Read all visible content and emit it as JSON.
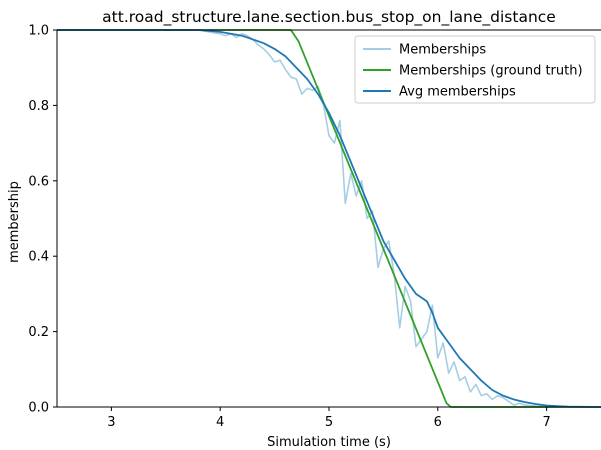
{
  "chart_data": {
    "type": "line",
    "title": "att.road_structure.lane.section.bus_stop_on_lane_distance",
    "xlabel": "Simulation time (s)",
    "ylabel": "membership",
    "xlim": [
      2.5,
      7.5
    ],
    "ylim": [
      0.0,
      1.0
    ],
    "xticks": [
      3,
      4,
      5,
      6,
      7
    ],
    "yticks": [
      0.0,
      0.2,
      0.4,
      0.6,
      0.8,
      1.0
    ],
    "xtick_labels": [
      "3",
      "4",
      "5",
      "6",
      "7"
    ],
    "ytick_labels": [
      "0.0",
      "0.2",
      "0.4",
      "0.6",
      "0.8",
      "1.0"
    ],
    "grid": false,
    "legend_position": "top-right",
    "series": [
      {
        "name": "Memberships",
        "color": "#a6cee3",
        "x": [
          2.5,
          3.8,
          3.9,
          4.0,
          4.05,
          4.1,
          4.15,
          4.2,
          4.25,
          4.3,
          4.35,
          4.4,
          4.45,
          4.5,
          4.55,
          4.6,
          4.65,
          4.7,
          4.75,
          4.8,
          4.85,
          4.9,
          4.95,
          5.0,
          5.05,
          5.1,
          5.15,
          5.2,
          5.25,
          5.3,
          5.35,
          5.4,
          5.45,
          5.5,
          5.55,
          5.6,
          5.65,
          5.7,
          5.75,
          5.8,
          5.85,
          5.9,
          5.95,
          6.0,
          6.05,
          6.1,
          6.15,
          6.2,
          6.25,
          6.3,
          6.35,
          6.4,
          6.45,
          6.5,
          6.55,
          6.6,
          6.65,
          6.7,
          6.75,
          6.8,
          6.9,
          7.0,
          7.1,
          7.2,
          7.5
        ],
        "y": [
          1.0,
          1.0,
          0.995,
          0.99,
          0.985,
          0.99,
          0.98,
          0.99,
          0.985,
          0.975,
          0.96,
          0.95,
          0.935,
          0.915,
          0.92,
          0.895,
          0.875,
          0.87,
          0.83,
          0.845,
          0.84,
          0.85,
          0.8,
          0.72,
          0.7,
          0.76,
          0.54,
          0.62,
          0.56,
          0.6,
          0.5,
          0.52,
          0.37,
          0.42,
          0.44,
          0.35,
          0.21,
          0.32,
          0.28,
          0.16,
          0.18,
          0.2,
          0.27,
          0.13,
          0.17,
          0.09,
          0.12,
          0.07,
          0.08,
          0.04,
          0.06,
          0.03,
          0.035,
          0.02,
          0.03,
          0.025,
          0.015,
          0.005,
          0.01,
          0.005,
          0.003,
          0.002,
          0.001,
          0.0,
          0.0
        ]
      },
      {
        "name": "Memberships (ground truth)",
        "color": "#33a02c",
        "x": [
          2.5,
          4.65,
          4.72,
          6.08,
          6.12,
          7.5
        ],
        "y": [
          1.0,
          1.0,
          0.97,
          0.01,
          0.0,
          0.0
        ]
      },
      {
        "name": "Avg memberships",
        "color": "#1f78b4",
        "x": [
          2.5,
          3.8,
          4.0,
          4.2,
          4.4,
          4.5,
          4.6,
          4.7,
          4.8,
          4.9,
          5.0,
          5.1,
          5.2,
          5.3,
          5.4,
          5.5,
          5.6,
          5.7,
          5.8,
          5.9,
          5.95,
          6.0,
          6.1,
          6.2,
          6.3,
          6.4,
          6.5,
          6.6,
          6.7,
          6.8,
          6.9,
          7.0,
          7.1,
          7.2,
          7.5
        ],
        "y": [
          1.0,
          1.0,
          0.995,
          0.985,
          0.965,
          0.95,
          0.93,
          0.9,
          0.87,
          0.83,
          0.78,
          0.72,
          0.65,
          0.58,
          0.51,
          0.44,
          0.39,
          0.34,
          0.3,
          0.28,
          0.25,
          0.21,
          0.17,
          0.13,
          0.1,
          0.07,
          0.045,
          0.03,
          0.02,
          0.013,
          0.008,
          0.004,
          0.002,
          0.001,
          0.0
        ]
      }
    ]
  }
}
